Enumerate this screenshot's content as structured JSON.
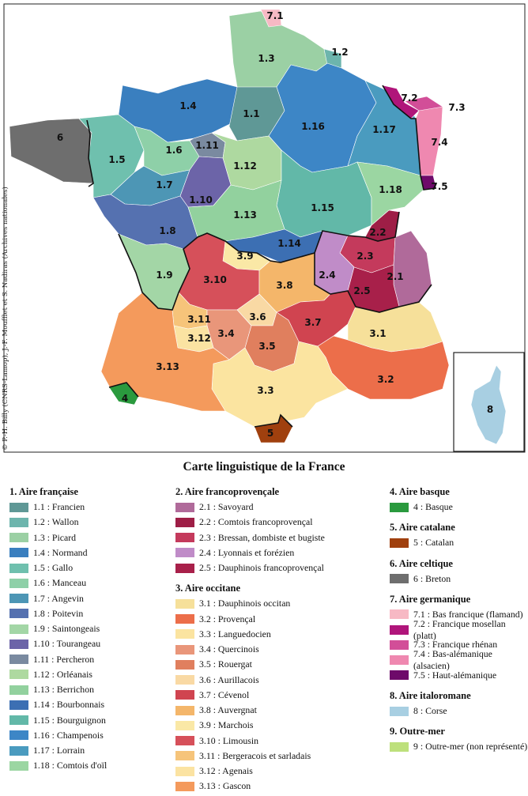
{
  "title": "Carte linguistique de la France",
  "credit": "© P.-H. Billy (CNRS-Lamop), J.-F. Moufflet et S. Nadiras (Archives nationales)",
  "map_labels": {
    "r_1_1": "1.1",
    "r_1_2": "1.2",
    "r_1_3": "1.3",
    "r_1_4": "1.4",
    "r_1_5": "1.5",
    "r_1_6": "1.6",
    "r_1_7": "1.7",
    "r_1_8": "1.8",
    "r_1_9": "1.9",
    "r_1_10": "1.10",
    "r_1_11": "1.11",
    "r_1_12": "1.12",
    "r_1_13": "1.13",
    "r_1_14": "1.14",
    "r_1_15": "1.15",
    "r_1_16": "1.16",
    "r_1_17": "1.17",
    "r_1_18": "1.18",
    "r_2_1": "2.1",
    "r_2_2": "2.2",
    "r_2_3": "2.3",
    "r_2_4": "2.4",
    "r_2_5": "2.5",
    "r_3_1": "3.1",
    "r_3_2": "3.2",
    "r_3_3": "3.3",
    "r_3_4": "3.4",
    "r_3_5": "3.5",
    "r_3_6": "3.6",
    "r_3_7": "3.7",
    "r_3_8": "3.8",
    "r_3_9": "3.9",
    "r_3_10": "3.10",
    "r_3_11": "3.11",
    "r_3_12": "3.12",
    "r_3_13": "3.13",
    "r_4": "4",
    "r_5": "5",
    "r_6": "6",
    "r_7_1": "7.1",
    "r_7_2": "7.2",
    "r_7_3": "7.3",
    "r_7_4": "7.4",
    "r_7_5": "7.5",
    "r_8": "8"
  },
  "legend": {
    "col1": [
      {
        "type": "group",
        "label": "1. Aire française"
      },
      {
        "label": "1.1 : Francien",
        "color": "#5f9896"
      },
      {
        "label": "1.2 : Wallon",
        "color": "#6db5ad"
      },
      {
        "label": "1.3 : Picard",
        "color": "#9bd0a4"
      },
      {
        "label": "1.4 : Normand",
        "color": "#3a7fbf"
      },
      {
        "label": "1.5 : Gallo",
        "color": "#6fc0ae"
      },
      {
        "label": "1.6 : Manceau",
        "color": "#8ed0a8"
      },
      {
        "label": "1.7 : Angevin",
        "color": "#4d96b5"
      },
      {
        "label": "1.8 : Poitevin",
        "color": "#5571b0"
      },
      {
        "label": "1.9 : Saintongeais",
        "color": "#a3d6a6"
      },
      {
        "label": "1.10 : Tourangeau",
        "color": "#6c64a8"
      },
      {
        "label": "1.11 : Percheron",
        "color": "#7a8aa0"
      },
      {
        "label": "1.12 : Orléanais",
        "color": "#aed9a0"
      },
      {
        "label": "1.13 : Berrichon",
        "color": "#92d19e"
      },
      {
        "label": "1.14 : Bourbonnais",
        "color": "#3c6fb3"
      },
      {
        "label": "1.15 : Bourguignon",
        "color": "#62b8a8"
      },
      {
        "label": "1.16 : Champenois",
        "color": "#3d86c6"
      },
      {
        "label": "1.17 : Lorrain",
        "color": "#4a9bbf"
      },
      {
        "label": "1.18 : Comtois d'oïl",
        "color": "#9bd6a2"
      }
    ],
    "col2": [
      {
        "type": "group",
        "label": "2. Aire francoprovençale"
      },
      {
        "label": "2.1 : Savoyard",
        "color": "#b06a9a"
      },
      {
        "label": "2.2 : Comtois francoprovençal",
        "color": "#9e1e46"
      },
      {
        "label": "2.3 : Bressan, dombiste et bugiste",
        "color": "#c43a5c"
      },
      {
        "label": "2.4 : Lyonnais et forézien",
        "color": "#c08cc8"
      },
      {
        "label": "2.5 : Dauphinois francoprovençal",
        "color": "#a8204a"
      },
      {
        "type": "group",
        "label": "3. Aire occitane"
      },
      {
        "label": "3.1 : Dauphinois occitan",
        "color": "#f6e09a"
      },
      {
        "label": "3.2 : Provençal",
        "color": "#ec6e4a"
      },
      {
        "label": "3.3 : Languedocien",
        "color": "#fbe4a0"
      },
      {
        "label": "3.4 : Quercinois",
        "color": "#e9967a"
      },
      {
        "label": "3.5 : Rouergat",
        "color": "#e07f5e"
      },
      {
        "label": "3.6 : Aurillacois",
        "color": "#f9d9a4"
      },
      {
        "label": "3.7 : Cévenol",
        "color": "#d04450"
      },
      {
        "label": "3.8 : Auvergnat",
        "color": "#f4b66a"
      },
      {
        "label": "3.9 : Marchois",
        "color": "#fae8a6"
      },
      {
        "label": "3.10 : Limousin",
        "color": "#d6505a"
      },
      {
        "label": "3.11 : Bergeracois et sarladais",
        "color": "#f6c47a"
      },
      {
        "label": "3.12 : Agenais",
        "color": "#fbe3a2"
      },
      {
        "label": "3.13 : Gascon",
        "color": "#f49a5c"
      }
    ],
    "col3": [
      {
        "type": "group",
        "label": "4. Aire basque"
      },
      {
        "label": "4 : Basque",
        "color": "#2a9a3e"
      },
      {
        "type": "group",
        "label": "5. Aire catalane"
      },
      {
        "label": "5 : Catalan",
        "color": "#a0400e"
      },
      {
        "type": "group",
        "label": "6. Aire celtique"
      },
      {
        "label": "6 : Breton",
        "color": "#6e6e6e"
      },
      {
        "type": "group",
        "label": "7. Aire germanique"
      },
      {
        "label": "7.1 : Bas francique (flamand)",
        "color": "#f7b9c4"
      },
      {
        "label": "7.2 : Francique mosellan (platt)",
        "color": "#b0157a"
      },
      {
        "label": "7.3 : Francique rhénan",
        "color": "#d24e98"
      },
      {
        "label": "7.4 : Bas-alémanique (alsacien)",
        "color": "#ef88b0"
      },
      {
        "label": "7.5 : Haut-alémanique",
        "color": "#6e0a6a"
      },
      {
        "type": "group",
        "label": "8. Aire italoromane"
      },
      {
        "label": "8 : Corse",
        "color": "#a8cfe2"
      },
      {
        "type": "group",
        "label": "9. Outre-mer"
      },
      {
        "label": "9 : Outre-mer (non représenté)",
        "color": "#bde07c"
      }
    ]
  }
}
